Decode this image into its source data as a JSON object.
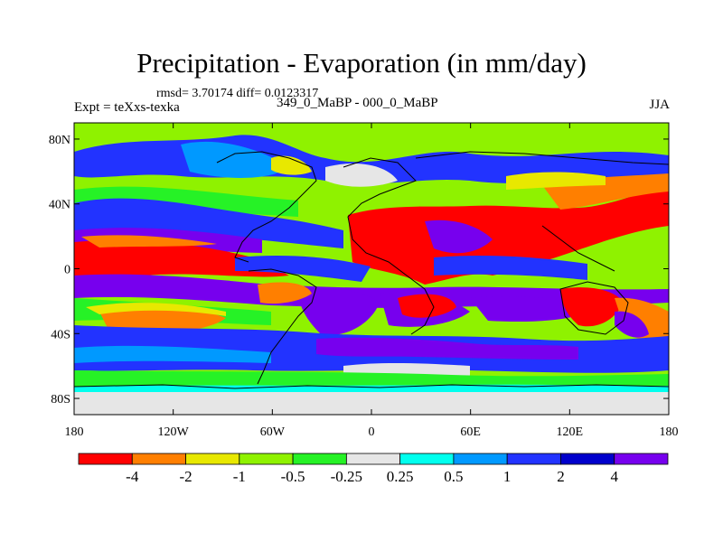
{
  "title": "Precipitation - Evaporation (in mm/day)",
  "stats_line": "rmsd= 3.70174  diff= 0.0123317",
  "experiment_line": "Expt = teXxs-texka",
  "cases_line": "349_0_MaBP - 000_0_MaBP",
  "season": "JJA",
  "map": {
    "projection": "cylindrical equidistant",
    "lon_range": [
      -180,
      180
    ],
    "lat_range": [
      -90,
      90
    ],
    "lat_ticks": [
      {
        "value": 80,
        "label": "80N"
      },
      {
        "value": 40,
        "label": "40N"
      },
      {
        "value": 0,
        "label": "0"
      },
      {
        "value": -40,
        "label": "40S"
      },
      {
        "value": -80,
        "label": "80S"
      }
    ],
    "lon_ticks": [
      {
        "value": -180,
        "label": "180"
      },
      {
        "value": -120,
        "label": "120W"
      },
      {
        "value": -60,
        "label": "60W"
      },
      {
        "value": 0,
        "label": "0"
      },
      {
        "value": 60,
        "label": "60E"
      },
      {
        "value": 120,
        "label": "120E"
      },
      {
        "value": 180,
        "label": "180"
      }
    ]
  },
  "colorbar": {
    "levels": [
      "-4",
      "-2",
      "-1",
      "-0.5",
      "-0.25",
      "0.25",
      "0.5",
      "1",
      "2",
      "4"
    ],
    "colors": [
      "#ff0000",
      "#ff7f00",
      "#e8e800",
      "#8ff200",
      "#26f226",
      "#e6e6e6",
      "#00ffee",
      "#0099ff",
      "#2233ff",
      "#0000cc",
      "#7700ee"
    ]
  },
  "colors": {
    "red": "#ff0000",
    "orange": "#ff7f00",
    "yellow": "#e8e800",
    "lime": "#8ff200",
    "green": "#26f226",
    "lightgray": "#e6e6e6",
    "cyan": "#00ffee",
    "lightblue": "#0099ff",
    "blue": "#2233ff",
    "navy": "#0000cc",
    "purple": "#7700ee"
  }
}
